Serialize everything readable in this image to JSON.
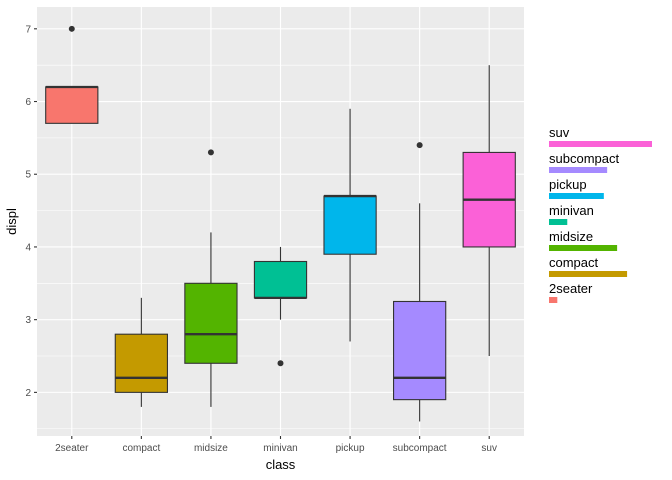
{
  "chart_data": {
    "type": "boxplot",
    "title": "",
    "xlabel": "class",
    "ylabel": "displ",
    "ylim": [
      1.4,
      7.3
    ],
    "yticks": [
      2,
      3,
      4,
      5,
      6,
      7
    ],
    "categories": [
      "2seater",
      "compact",
      "midsize",
      "minivan",
      "pickup",
      "subcompact",
      "suv"
    ],
    "boxes": [
      {
        "category": "2seater",
        "color": "#F8766D",
        "whisker_low": 5.7,
        "q1": 5.7,
        "median": 6.2,
        "q3": 6.2,
        "whisker_high": 6.2,
        "outliers": [
          7.0
        ]
      },
      {
        "category": "compact",
        "color": "#C49A00",
        "whisker_low": 1.8,
        "q1": 2.0,
        "median": 2.2,
        "q3": 2.8,
        "whisker_high": 3.3,
        "outliers": []
      },
      {
        "category": "midsize",
        "color": "#53B400",
        "whisker_low": 1.8,
        "q1": 2.4,
        "median": 2.8,
        "q3": 3.5,
        "whisker_high": 4.2,
        "outliers": [
          5.3
        ]
      },
      {
        "category": "minivan",
        "color": "#00C094",
        "whisker_low": 3.0,
        "q1": 3.3,
        "median": 3.3,
        "q3": 3.8,
        "whisker_high": 4.0,
        "outliers": [
          2.4
        ]
      },
      {
        "category": "pickup",
        "color": "#00B6EB",
        "whisker_low": 2.7,
        "q1": 3.9,
        "median": 4.7,
        "q3": 4.7,
        "whisker_high": 5.9,
        "outliers": []
      },
      {
        "category": "subcompact",
        "color": "#A58AFF",
        "whisker_low": 1.6,
        "q1": 1.9,
        "median": 2.2,
        "q3": 3.25,
        "whisker_high": 4.6,
        "outliers": [
          5.4
        ]
      },
      {
        "category": "suv",
        "color": "#FB61D7",
        "whisker_low": 2.5,
        "q1": 4.0,
        "median": 4.65,
        "q3": 5.3,
        "whisker_high": 6.5,
        "outliers": []
      }
    ],
    "legend": {
      "placement": "right",
      "entries": [
        {
          "label": "suv",
          "color": "#FB61D7",
          "value": 62
        },
        {
          "label": "subcompact",
          "color": "#A58AFF",
          "value": 35
        },
        {
          "label": "pickup",
          "color": "#00B6EB",
          "value": 33
        },
        {
          "label": "minivan",
          "color": "#00C094",
          "value": 11
        },
        {
          "label": "midsize",
          "color": "#53B400",
          "value": 41
        },
        {
          "label": "compact",
          "color": "#C49A00",
          "value": 47
        },
        {
          "label": "2seater",
          "color": "#F8766D",
          "value": 5
        }
      ]
    }
  }
}
